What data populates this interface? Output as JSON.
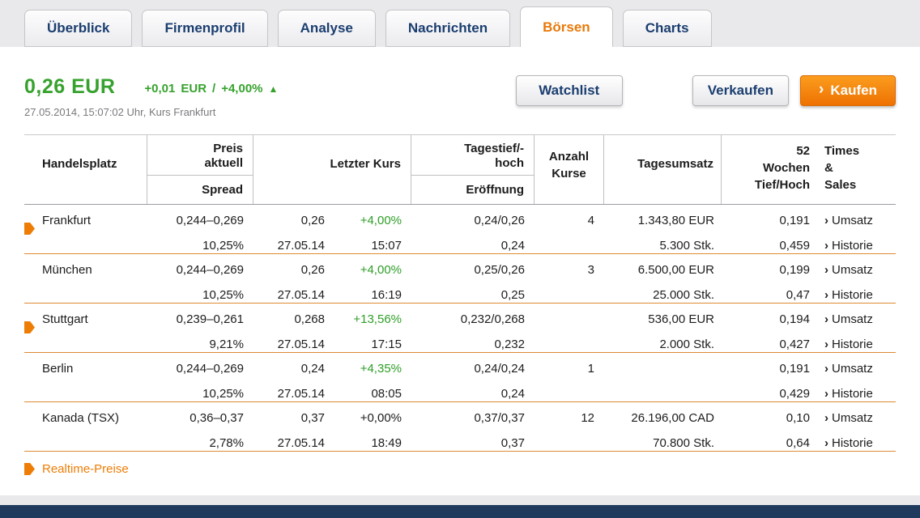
{
  "tabs": [
    {
      "label": "Überblick",
      "active": false
    },
    {
      "label": "Firmenprofil",
      "active": false
    },
    {
      "label": "Analyse",
      "active": false
    },
    {
      "label": "Nachrichten",
      "active": false
    },
    {
      "label": "Börsen",
      "active": true
    },
    {
      "label": "Charts",
      "active": false
    }
  ],
  "quote": {
    "price": "0,26 EUR",
    "change_abs": "+0,01",
    "change_currency": "EUR",
    "change_separator": "/",
    "change_pct": "+4,00%",
    "timestamp": "27.05.2014, 15:07:02 Uhr, Kurs Frankfurt"
  },
  "actions": {
    "watchlist_label": "Watchlist",
    "sell_label": "Verkaufen",
    "buy_label": "Kaufen"
  },
  "icons": {
    "arrow_up": "▲",
    "chevron_right": "›"
  },
  "colors": {
    "positive_green": "#36a22d",
    "accent_orange": "#ee7d05",
    "tab_blue": "#1b3e6f",
    "active_tab_orange": "#e8790a",
    "footer_navy": "#1f3a5d"
  },
  "table": {
    "headers": {
      "handelsplatz": "Handelsplatz",
      "preis_line1": "Preis",
      "preis_line2": "aktuell",
      "spread": "Spread",
      "letzter_kurs": "Letzter Kurs",
      "tagestief_line1": "Tagestief/-",
      "tagestief_line2": "hoch",
      "eroeffnung": "Eröffnung",
      "anzahl_line1": "Anzahl",
      "anzahl_line2": "Kurse",
      "tagesumsatz": "Tagesumsatz",
      "w52_line1": "52",
      "w52_line2": "Wochen",
      "w52_line3": "Tief/Hoch",
      "ts_line1": "Times",
      "ts_line2": "&",
      "ts_line3": "Sales"
    },
    "links": {
      "umsatz": "Umsatz",
      "historie": "Historie"
    },
    "rows": [
      {
        "realtime": true,
        "name": "Frankfurt",
        "preis": "0,244–0,269",
        "spread": "10,25%",
        "kurs": "0,26",
        "kurs_date": "27.05.14",
        "pct": "+4,00%",
        "pct_positive": true,
        "kurs_time": "15:07",
        "tief_hoch": "0,24/0,26",
        "eroeffnung": "0,24",
        "anzahl": "4",
        "umsatz": "1.343,80 EUR",
        "stueck": "5.300 Stk.",
        "w52_tief": "0,191",
        "w52_hoch": "0,459"
      },
      {
        "realtime": false,
        "name": "München",
        "preis": "0,244–0,269",
        "spread": "10,25%",
        "kurs": "0,26",
        "kurs_date": "27.05.14",
        "pct": "+4,00%",
        "pct_positive": true,
        "kurs_time": "16:19",
        "tief_hoch": "0,25/0,26",
        "eroeffnung": "0,25",
        "anzahl": "3",
        "umsatz": "6.500,00 EUR",
        "stueck": "25.000 Stk.",
        "w52_tief": "0,199",
        "w52_hoch": "0,47"
      },
      {
        "realtime": true,
        "name": "Stuttgart",
        "preis": "0,239–0,261",
        "spread": "9,21%",
        "kurs": "0,268",
        "kurs_date": "27.05.14",
        "pct": "+13,56%",
        "pct_positive": true,
        "kurs_time": "17:15",
        "tief_hoch": "0,232/0,268",
        "eroeffnung": "0,232",
        "anzahl": "",
        "umsatz": "536,00 EUR",
        "stueck": "2.000 Stk.",
        "w52_tief": "0,194",
        "w52_hoch": "0,427"
      },
      {
        "realtime": false,
        "name": "Berlin",
        "preis": "0,244–0,269",
        "spread": "10,25%",
        "kurs": "0,24",
        "kurs_date": "27.05.14",
        "pct": "+4,35%",
        "pct_positive": true,
        "kurs_time": "08:05",
        "tief_hoch": "0,24/0,24",
        "eroeffnung": "0,24",
        "anzahl": "1",
        "umsatz": "",
        "stueck": "",
        "w52_tief": "0,191",
        "w52_hoch": "0,429"
      },
      {
        "realtime": false,
        "name": "Kanada (TSX)",
        "preis": "0,36–0,37",
        "spread": "2,78%",
        "kurs": "0,37",
        "kurs_date": "27.05.14",
        "pct": "+0,00%",
        "pct_positive": false,
        "kurs_time": "18:49",
        "tief_hoch": "0,37/0,37",
        "eroeffnung": "0,37",
        "anzahl": "12",
        "umsatz": "26.196,00 CAD",
        "stueck": "70.800 Stk.",
        "w52_tief": "0,10",
        "w52_hoch": "0,64"
      }
    ]
  },
  "footer": {
    "realtime_label": "Realtime-Preise"
  }
}
